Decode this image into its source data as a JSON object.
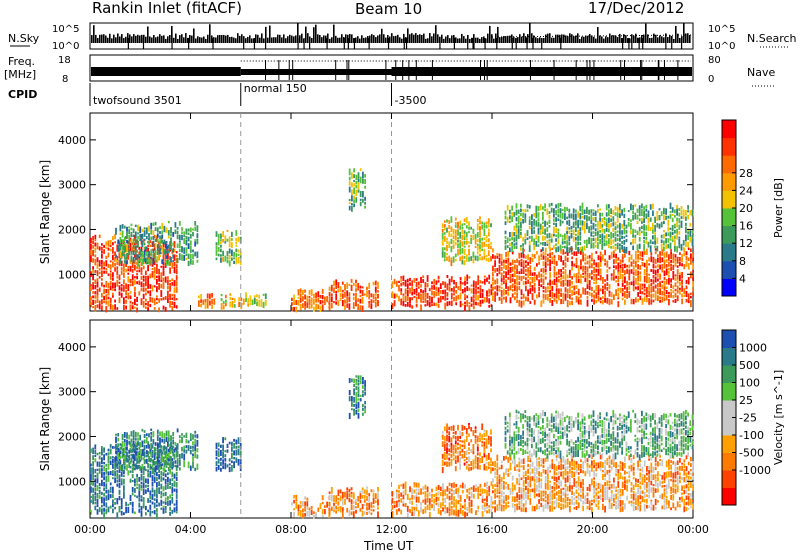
{
  "header": {
    "title": "Rankin Inlet (fitACF)",
    "beam": "Beam 10",
    "date": "17/Dec/2012"
  },
  "top_panels": {
    "nsky_label": "N.Sky",
    "nsearch_label": "N.Search",
    "freq_label_1": "Freq.",
    "freq_label_2": "[MHz]",
    "nave_label": "Nave",
    "cpid_label": "CPID",
    "noise_ticks_left": [
      "10^5",
      "10^0"
    ],
    "noise_ticks_right": [
      "10^5",
      "10^0"
    ],
    "freq_ticks": [
      "18",
      "8"
    ],
    "nave_ticks": [
      "80",
      "0"
    ],
    "cpid_segments": [
      {
        "start_hour": 0,
        "end_hour": 6,
        "label": "twofsound 3501"
      },
      {
        "start_hour": 6,
        "end_hour": 12,
        "label": "normal 150"
      },
      {
        "start_hour": 12,
        "end_hour": 24,
        "label": "-3500"
      }
    ]
  },
  "chart_data": [
    {
      "type": "heatmap",
      "name": "power",
      "ylabel": "Slant Range [km]",
      "yticks": [
        "1000",
        "2000",
        "3000",
        "4000"
      ],
      "ylim": [
        180,
        4600
      ],
      "xlim": [
        0,
        24
      ],
      "colorbar": {
        "label": "Power [dB]",
        "ticks": [
          "4",
          "8",
          "12",
          "16",
          "20",
          "24",
          "28"
        ],
        "colors": [
          "#0000ff",
          "#1d4fb0",
          "#2a7a8a",
          "#3c9a5a",
          "#56c23a",
          "#f2c200",
          "#ff9a00",
          "#ff6a00",
          "#ff3200",
          "#ff0000"
        ]
      },
      "bands": [
        {
          "x0": 0.0,
          "x1": 3.5,
          "y0": 250,
          "y1": 1900,
          "level": 0.85
        },
        {
          "x0": 1.0,
          "x1": 4.3,
          "y0": 1300,
          "y1": 2200,
          "level": 0.35
        },
        {
          "x0": 4.3,
          "x1": 5.0,
          "y0": 300,
          "y1": 600,
          "level": 0.7
        },
        {
          "x0": 5.0,
          "x1": 6.0,
          "y0": 1300,
          "y1": 2000,
          "level": 0.45
        },
        {
          "x0": 5.2,
          "x1": 6.0,
          "y0": 300,
          "y1": 600,
          "level": 0.6
        },
        {
          "x0": 6.0,
          "x1": 7.0,
          "y0": 300,
          "y1": 600,
          "level": 0.55
        },
        {
          "x0": 8.0,
          "x1": 9.5,
          "y0": 250,
          "y1": 700,
          "level": 0.75
        },
        {
          "x0": 9.5,
          "x1": 11.5,
          "y0": 300,
          "y1": 900,
          "level": 0.8
        },
        {
          "x0": 10.3,
          "x1": 11.0,
          "y0": 2500,
          "y1": 3400,
          "level": 0.4
        },
        {
          "x0": 12.0,
          "x1": 16.0,
          "y0": 300,
          "y1": 1000,
          "level": 0.85
        },
        {
          "x0": 14.0,
          "x1": 16.0,
          "y0": 1300,
          "y1": 2300,
          "level": 0.55
        },
        {
          "x0": 16.0,
          "x1": 24.0,
          "y0": 400,
          "y1": 1600,
          "level": 0.8
        },
        {
          "x0": 16.5,
          "x1": 24.0,
          "y0": 1600,
          "y1": 2600,
          "level": 0.4
        }
      ]
    },
    {
      "type": "heatmap",
      "name": "velocity",
      "ylabel": "Slant Range [km]",
      "xlabel": "Time UT",
      "xticks": [
        "00:00",
        "04:00",
        "08:00",
        "12:00",
        "16:00",
        "20:00",
        "00:00"
      ],
      "yticks": [
        "1000",
        "2000",
        "3000",
        "4000"
      ],
      "ylim": [
        180,
        4600
      ],
      "xlim": [
        0,
        24
      ],
      "colorbar": {
        "label": "Velocity [m s^-1]",
        "ticks": [
          "1000",
          "500",
          "100",
          "25",
          "-25",
          "-100",
          "-500",
          "-1000"
        ],
        "colors": [
          "#1d4fb0",
          "#2a7a8a",
          "#3c9a5a",
          "#56c23a",
          "#c8c8c8",
          "#c8c8c8",
          "#ffa000",
          "#ff7a00",
          "#ff4200",
          "#ff0000"
        ]
      },
      "bands": [
        {
          "x0": 0.0,
          "x1": 3.5,
          "y0": 300,
          "y1": 1900,
          "level": 0.15
        },
        {
          "x0": 1.0,
          "x1": 4.3,
          "y0": 1300,
          "y1": 2200,
          "level": 0.2
        },
        {
          "x0": 5.0,
          "x1": 6.0,
          "y0": 1300,
          "y1": 2000,
          "level": 0.1
        },
        {
          "x0": 8.0,
          "x1": 9.5,
          "y0": 250,
          "y1": 700,
          "level": 0.7
        },
        {
          "x0": 9.5,
          "x1": 11.5,
          "y0": 300,
          "y1": 900,
          "level": 0.72
        },
        {
          "x0": 10.3,
          "x1": 11.0,
          "y0": 2500,
          "y1": 3400,
          "level": 0.2
        },
        {
          "x0": 12.0,
          "x1": 16.0,
          "y0": 300,
          "y1": 1000,
          "level": 0.7
        },
        {
          "x0": 14.0,
          "x1": 16.0,
          "y0": 1300,
          "y1": 2300,
          "level": 0.75
        },
        {
          "x0": 16.0,
          "x1": 24.0,
          "y0": 400,
          "y1": 1600,
          "level": 0.68
        },
        {
          "x0": 16.5,
          "x1": 24.0,
          "y0": 1600,
          "y1": 2600,
          "level": 0.3
        }
      ]
    }
  ]
}
